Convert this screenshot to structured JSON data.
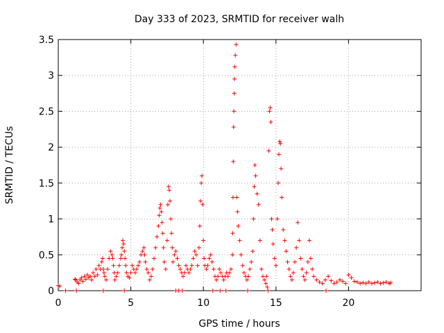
{
  "chart_data": {
    "type": "scatter",
    "title": "Day 333 of 2023, SRMTID for receiver walh",
    "xlabel": "GPS time / hours",
    "ylabel": "SRMTID / TECUs",
    "xlim": [
      0,
      25
    ],
    "ylim": [
      0,
      3.5
    ],
    "xticks": [
      0,
      5,
      10,
      15,
      20
    ],
    "xtick_labels": [
      "0",
      "5",
      "10",
      "15",
      "20"
    ],
    "yticks": [
      0,
      0.5,
      1,
      1.5,
      2,
      2.5,
      3,
      3.5
    ],
    "ytick_labels": [
      "0",
      "0.5",
      "1",
      "1.5",
      "2",
      "2.5",
      "3",
      "3.5"
    ],
    "grid": true,
    "marker": "plus",
    "series": [
      {
        "name": "walh",
        "color": "#ff0000",
        "x": [
          0.0,
          0.1,
          0.5,
          1.15,
          1.2,
          1.3,
          1.4,
          1.5,
          1.6,
          1.7,
          1.8,
          1.9,
          2.0,
          2.1,
          2.2,
          2.3,
          2.4,
          2.5,
          2.6,
          2.7,
          2.8,
          2.9,
          3.0,
          3.05,
          3.1,
          3.15,
          3.2,
          3.3,
          3.4,
          3.5,
          3.6,
          3.7,
          3.75,
          3.8,
          3.85,
          3.9,
          4.0,
          4.1,
          4.2,
          4.3,
          4.35,
          4.4,
          4.45,
          4.5,
          4.55,
          4.6,
          4.65,
          4.7,
          4.8,
          4.9,
          5.0,
          5.1,
          5.2,
          5.3,
          5.4,
          5.5,
          5.6,
          5.7,
          5.8,
          5.9,
          5.95,
          6.0,
          6.1,
          6.2,
          6.3,
          6.4,
          6.5,
          6.6,
          6.7,
          6.8,
          6.9,
          6.95,
          7.0,
          7.05,
          7.1,
          7.15,
          7.2,
          7.25,
          7.3,
          7.4,
          7.5,
          7.55,
          7.6,
          7.65,
          7.7,
          7.75,
          7.8,
          7.85,
          7.9,
          8.0,
          8.1,
          8.2,
          8.3,
          8.4,
          8.5,
          8.6,
          8.7,
          8.8,
          8.9,
          9.0,
          9.1,
          9.2,
          9.3,
          9.4,
          9.5,
          9.6,
          9.7,
          9.75,
          9.8,
          9.85,
          9.9,
          9.95,
          10.0,
          10.05,
          10.1,
          10.2,
          10.3,
          10.4,
          10.5,
          10.6,
          10.7,
          10.8,
          10.9,
          11.0,
          11.1,
          11.2,
          11.3,
          11.4,
          11.5,
          11.6,
          11.7,
          11.8,
          11.9,
          12.0,
          12.02,
          12.04,
          12.06,
          12.08,
          12.1,
          12.12,
          12.14,
          12.16,
          12.2,
          12.25,
          12.3,
          12.35,
          12.4,
          12.5,
          12.6,
          12.7,
          12.8,
          12.9,
          13.0,
          13.1,
          13.2,
          13.3,
          13.4,
          13.45,
          13.5,
          13.55,
          13.6,
          13.7,
          13.8,
          13.9,
          14.0,
          14.1,
          14.2,
          14.3,
          14.35,
          14.4,
          14.45,
          14.5,
          14.55,
          14.6,
          14.65,
          14.7,
          14.75,
          14.8,
          14.9,
          15.0,
          15.1,
          15.15,
          15.2,
          15.25,
          15.3,
          15.35,
          15.4,
          15.5,
          15.6,
          15.7,
          15.8,
          15.9,
          16.0,
          16.1,
          16.2,
          16.3,
          16.4,
          16.5,
          16.6,
          16.7,
          16.8,
          16.9,
          17.0,
          17.1,
          17.2,
          17.3,
          17.4,
          17.5,
          17.6,
          17.8,
          18.0,
          18.2,
          18.4,
          18.6,
          18.8,
          19.0,
          19.2,
          19.4,
          19.6,
          19.8,
          20.0,
          20.2,
          20.4,
          20.6,
          20.8,
          21.0,
          21.2,
          21.4,
          21.6,
          21.8,
          22.0,
          22.2,
          22.4,
          22.6,
          22.8,
          22.9,
          1.25,
          3.1,
          4.55,
          8.1,
          8.3,
          8.55,
          10.65,
          11.15,
          11.55,
          13.05,
          18.45
        ],
        "y": [
          0.07,
          0.06,
          0.0,
          0.16,
          0.15,
          0.12,
          0.1,
          0.15,
          0.18,
          0.13,
          0.2,
          0.16,
          0.22,
          0.18,
          0.2,
          0.15,
          0.25,
          0.2,
          0.3,
          0.22,
          0.35,
          0.3,
          0.4,
          0.45,
          0.3,
          0.25,
          0.2,
          0.15,
          0.3,
          0.45,
          0.55,
          0.5,
          0.45,
          0.35,
          0.25,
          0.15,
          0.2,
          0.25,
          0.35,
          0.45,
          0.5,
          0.6,
          0.7,
          0.65,
          0.55,
          0.45,
          0.35,
          0.25,
          0.2,
          0.18,
          0.25,
          0.35,
          0.3,
          0.25,
          0.3,
          0.35,
          0.4,
          0.5,
          0.55,
          0.6,
          0.5,
          0.4,
          0.3,
          0.25,
          0.15,
          0.2,
          0.3,
          0.45,
          0.6,
          0.75,
          0.9,
          1.05,
          1.15,
          1.2,
          1.1,
          0.95,
          0.8,
          0.6,
          0.4,
          0.3,
          0.7,
          1.2,
          1.45,
          1.4,
          1.25,
          1.0,
          0.8,
          0.6,
          0.4,
          0.5,
          0.55,
          0.45,
          0.35,
          0.3,
          0.25,
          0.2,
          0.25,
          0.35,
          0.3,
          0.25,
          0.3,
          0.35,
          0.45,
          0.55,
          0.5,
          0.35,
          0.6,
          0.9,
          1.25,
          1.5,
          1.6,
          1.2,
          0.7,
          0.45,
          0.35,
          0.3,
          0.35,
          0.45,
          0.5,
          0.4,
          0.3,
          0.2,
          0.15,
          0.2,
          0.3,
          0.25,
          0.2,
          0.15,
          0.2,
          0.25,
          0.2,
          0.25,
          0.3,
          0.5,
          0.8,
          1.3,
          1.8,
          2.28,
          2.5,
          2.75,
          2.95,
          3.12,
          3.28,
          3.43,
          1.3,
          1.1,
          0.9,
          0.7,
          0.5,
          0.35,
          0.25,
          0.2,
          0.15,
          0.2,
          0.3,
          0.4,
          0.55,
          1.0,
          1.45,
          1.75,
          1.6,
          1.35,
          1.2,
          0.7,
          0.3,
          0.2,
          0.15,
          0.1,
          0.2,
          0.05,
          0.0,
          1.95,
          2.5,
          2.55,
          2.35,
          1.0,
          0.85,
          0.65,
          0.45,
          0.35,
          1.0,
          1.5,
          1.9,
          2.08,
          2.05,
          1.7,
          1.3,
          0.85,
          0.7,
          0.55,
          0.4,
          0.3,
          0.2,
          0.15,
          0.25,
          0.4,
          0.6,
          0.95,
          0.7,
          0.45,
          0.3,
          0.2,
          0.15,
          0.25,
          0.4,
          0.7,
          0.45,
          0.3,
          0.2,
          0.15,
          0.12,
          0.1,
          0.15,
          0.2,
          0.14,
          0.1,
          0.12,
          0.15,
          0.13,
          0.1,
          0.22,
          0.18,
          0.13,
          0.12,
          0.1,
          0.11,
          0.1,
          0.12,
          0.1,
          0.11,
          0.12,
          0.1,
          0.11,
          0.12,
          0.1,
          0.11,
          0.0,
          0.0,
          0.0,
          0.0,
          0.0,
          0.0,
          0.0,
          0.0,
          0.0,
          0.0,
          0.0
        ]
      }
    ]
  }
}
